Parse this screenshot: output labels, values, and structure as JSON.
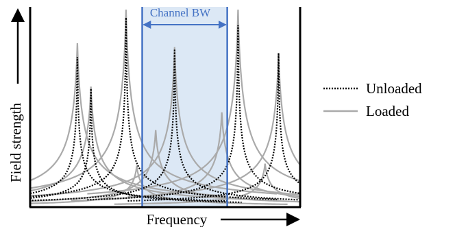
{
  "chart_data": {
    "type": "line",
    "xlabel": "Frequency",
    "ylabel": "Field strength",
    "annotation": "Channel BW",
    "xlim": [
      0,
      1
    ],
    "ylim": [
      0,
      1
    ],
    "grid": false,
    "legend_position": "right",
    "channel_band": [
      0.415,
      0.73
    ],
    "series": [
      {
        "name": "Unloaded",
        "style": "dotted",
        "color": "#000000",
        "peaks": [
          {
            "x": 0.175,
            "y": 0.76
          },
          {
            "x": 0.225,
            "y": 0.6
          },
          {
            "x": 0.355,
            "y": 0.96
          },
          {
            "x": 0.535,
            "y": 0.8
          },
          {
            "x": 0.77,
            "y": 0.92
          },
          {
            "x": 0.92,
            "y": 0.78
          }
        ]
      },
      {
        "name": "Loaded",
        "style": "solid",
        "color": "#aaaaaa",
        "peaks": [
          {
            "x": 0.175,
            "y": 0.83
          },
          {
            "x": 0.225,
            "y": 0.61
          },
          {
            "x": 0.355,
            "y": 1.0
          },
          {
            "x": 0.395,
            "y": 0.21
          },
          {
            "x": 0.465,
            "y": 0.39
          },
          {
            "x": 0.535,
            "y": 0.81
          },
          {
            "x": 0.71,
            "y": 0.48
          },
          {
            "x": 0.77,
            "y": 1.0
          },
          {
            "x": 0.87,
            "y": 0.22
          },
          {
            "x": 0.92,
            "y": 0.78
          }
        ]
      }
    ]
  },
  "colors": {
    "band_fill": "#dce8f5",
    "band_edge": "#4472c4",
    "axis": "#000000"
  }
}
